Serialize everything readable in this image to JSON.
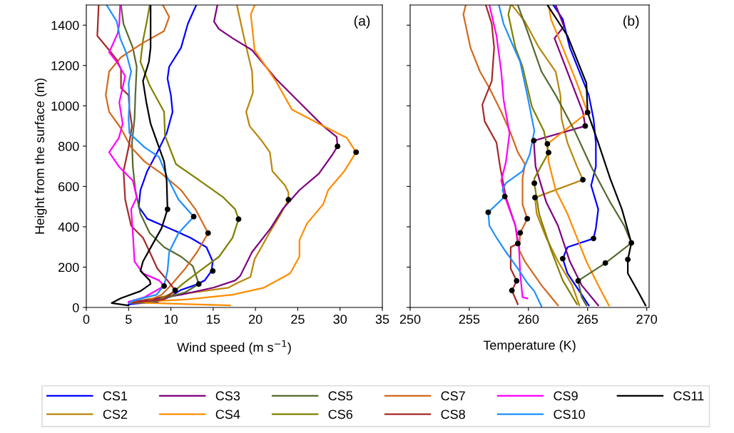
{
  "chart_data": [
    {
      "type": "line",
      "xlabel": "Wind speed (m s$^{−1}$)",
      "ylabel": "Height from the surface (m)",
      "annotations": [
        "(a)"
      ],
      "xlim": [
        0,
        35
      ],
      "xticks": [
        0,
        5,
        10,
        15,
        20,
        25,
        30,
        35
      ],
      "ylim": [
        0,
        1500
      ],
      "yticks": [
        0,
        200,
        400,
        600,
        800,
        1000,
        1200,
        1400
      ],
      "legend": "bottom",
      "grid": false,
      "series": [
        {
          "name": "CS1",
          "color": "#0000ff",
          "x": [
            13.0,
            12.0,
            11.2,
            9.8,
            9.6,
            10.0,
            10.2,
            9.5,
            8.4,
            7.2,
            6.4,
            6.2,
            7.2,
            9.8,
            12.3,
            14.2,
            14.95,
            14.8,
            14.0,
            12.8,
            11.2,
            9.8,
            8.4,
            6.0,
            5.0
          ],
          "values": [
            1500,
            1406,
            1288,
            1194,
            1135,
            1053,
            970,
            864,
            770,
            676,
            582,
            499,
            440,
            393,
            346,
            299,
            228,
            181,
            134,
            110,
            87,
            51,
            28,
            20,
            15
          ]
        },
        {
          "name": "CS2",
          "color": "#b8860b",
          "x": [
            17.8,
            18.6,
            19.6,
            19.7,
            18.9,
            19.3,
            20.7,
            21.7,
            22.0,
            23.5,
            23.9,
            23.9,
            23.0,
            21.8,
            20.7,
            19.9,
            19.4,
            17.9,
            16.8,
            10.0,
            5.0
          ],
          "values": [
            1500,
            1347,
            1170,
            1065,
            970,
            900,
            829,
            770,
            676,
            605,
            570,
            534,
            464,
            381,
            299,
            240,
            151,
            122,
            98,
            60,
            25
          ]
        },
        {
          "name": "CS3",
          "color": "#800080",
          "x": [
            15.5,
            15.1,
            15.65,
            17.3,
            19.6,
            22.4,
            25.2,
            28.0,
            29.6,
            29.7,
            29.1,
            27.5,
            25.2,
            23.2,
            21.8,
            19.6,
            18.2,
            17.6,
            15.1,
            11.2,
            6.9,
            5.0
          ],
          "values": [
            1500,
            1418,
            1382,
            1335,
            1276,
            1135,
            1017,
            900,
            846,
            799,
            758,
            664,
            582,
            487,
            393,
            275,
            157,
            134,
            99,
            63,
            34,
            25
          ]
        },
        {
          "name": "CS4",
          "color": "#ff8c00",
          "x": [
            19.9,
            19.45,
            19.9,
            22.4,
            24.3,
            28.0,
            30.8,
            31.9,
            30.5,
            28.6,
            28.0,
            26.1,
            25.2,
            25.2,
            24.1,
            21.0,
            17.3,
            12.0,
            5.0,
            17.0
          ],
          "values": [
            1500,
            1453,
            1276,
            1123,
            982,
            900,
            841,
            770,
            676,
            582,
            511,
            417,
            334,
            252,
            169,
            98,
            63,
            40,
            25,
            10
          ]
        },
        {
          "name": "CS5",
          "color": "#556b2f",
          "x": [
            4.1,
            4.4,
            5.5,
            5.96,
            5.8,
            5.7,
            5.4,
            5.5,
            5.8,
            6.4,
            7.5,
            9.2,
            11.2,
            12.6,
            13.3,
            11.7,
            8.3,
            5.5
          ],
          "values": [
            1500,
            1406,
            1288,
            1194,
            1053,
            935,
            817,
            699,
            582,
            464,
            369,
            299,
            252,
            205,
            116,
            75,
            34,
            22
          ]
        },
        {
          "name": "CS6",
          "color": "#808000",
          "x": [
            7.5,
            7.1,
            6.7,
            6.4,
            7.5,
            9.2,
            9.3,
            10.6,
            13.4,
            16.2,
            17.6,
            18.0,
            17.3,
            15.7,
            13.4,
            11.2,
            10.3,
            8.3,
            5.5
          ],
          "values": [
            1500,
            1406,
            1324,
            1218,
            1100,
            970,
            852,
            711,
            629,
            546,
            487,
            438,
            346,
            252,
            181,
            110,
            75,
            34,
            22
          ]
        },
        {
          "name": "CS7",
          "color": "#d2691e",
          "x": [
            9.05,
            9.8,
            9.2,
            6.7,
            4.1,
            2.7,
            2.3,
            2.7,
            4.1,
            5.3,
            6.9,
            8.9,
            11.2,
            12.9,
            14.4,
            13.1,
            11.7,
            10.0,
            8.9,
            7.0
          ],
          "values": [
            1500,
            1441,
            1371,
            1312,
            1241,
            1170,
            1053,
            970,
            888,
            794,
            723,
            664,
            582,
            487,
            369,
            275,
            193,
            110,
            63,
            28
          ]
        },
        {
          "name": "CS8",
          "color": "#a52a2a",
          "x": [
            1.46,
            1.3,
            2.7,
            3.6,
            4.1,
            4.1,
            5.0,
            5.1,
            5.4,
            5.0,
            4.4,
            4.6,
            5.3,
            6.7,
            7.5,
            8.4,
            9.6,
            10.5,
            9.2,
            5.5
          ],
          "values": [
            1500,
            1347,
            1276,
            1229,
            1182,
            1088,
            1053,
            982,
            900,
            794,
            676,
            534,
            405,
            346,
            275,
            193,
            134,
            85,
            40,
            25
          ]
        },
        {
          "name": "CS9",
          "color": "#ff00ff",
          "x": [
            4.0,
            3.9,
            3.7,
            2.7,
            3.6,
            4.6,
            3.9,
            4.3,
            3.85,
            2.7,
            3.85,
            5.5,
            5.96,
            5.3,
            5.5,
            5.7,
            6.7,
            8.6,
            9.2,
            6.9,
            5.0
          ],
          "values": [
            1500,
            1406,
            1359,
            1265,
            1218,
            1147,
            1017,
            911,
            841,
            770,
            699,
            629,
            546,
            487,
            369,
            228,
            169,
            134,
            106,
            51,
            28
          ]
        },
        {
          "name": "CS10",
          "color": "#1e90ff",
          "x": [
            2.4,
            3.6,
            4.0,
            4.7,
            5.3,
            5.0,
            5.1,
            5.0,
            5.1,
            6.9,
            8.6,
            9.5,
            10.9,
            12.7,
            10.9,
            9.8,
            9.6,
            9.2,
            8.3,
            5.5,
            5.1
          ],
          "values": [
            1500,
            1418,
            1335,
            1265,
            1170,
            1112,
            1029,
            935,
            864,
            794,
            746,
            652,
            535,
            450,
            369,
            275,
            181,
            110,
            63,
            34,
            22
          ]
        },
        {
          "name": "CS11",
          "color": "#000000",
          "x": [
            7.6,
            7.6,
            7.4,
            6.7,
            7.1,
            7.6,
            8.4,
            9.2,
            9.5,
            9.6,
            8.9,
            7.8,
            6.7,
            6.4,
            7.5,
            7.6,
            6.4,
            4.1,
            3.0,
            5.0
          ],
          "values": [
            1500,
            1288,
            1218,
            1123,
            1017,
            911,
            817,
            723,
            629,
            487,
            393,
            311,
            228,
            181,
            134,
            116,
            81,
            46,
            22,
            10
          ]
        },
        {
          "type": "scatter",
          "color": "#000000",
          "x": [
            14.95,
            23.9,
            29.7,
            31.9,
            13.3,
            18.0,
            14.4,
            10.5,
            9.2,
            12.7,
            9.6
          ],
          "values": [
            181,
            534,
            799,
            770,
            116,
            438,
            369,
            85,
            106,
            450,
            487
          ]
        }
      ]
    },
    {
      "type": "line",
      "xlabel": "Temperature (K)",
      "annotations": [
        "(b)"
      ],
      "xlim": [
        250,
        270.2
      ],
      "xticks": [
        250,
        255,
        260,
        265,
        270
      ],
      "ylim": [
        0,
        1500
      ],
      "yticks": [
        0,
        200,
        400,
        600,
        800,
        1000,
        1200,
        1400
      ],
      "tick_labels": "x",
      "grid": false,
      "series": [
        {
          "color": "#0000ff",
          "x": [
            262.1,
            262.9,
            263.5,
            265.1,
            265.5,
            265.7,
            265.7,
            265.3,
            265.9,
            265.7,
            265.5,
            263.3,
            262.9,
            263.3,
            264.5,
            265.1
          ],
          "values": [
            1500,
            1430,
            1288,
            1053,
            935,
            817,
            699,
            605,
            487,
            393,
            342,
            299,
            242,
            169,
            63,
            10
          ]
        },
        {
          "color": "#b8860b",
          "x": [
            258.6,
            259.7,
            260.9,
            262.3,
            262.7,
            262.8,
            263.3,
            264.1,
            264.6,
            260.55,
            260.7,
            261.5,
            262.5,
            263.7,
            264.3
          ],
          "values": [
            1500,
            1418,
            1288,
            1170,
            1053,
            935,
            817,
            699,
            633,
            545,
            464,
            346,
            228,
            110,
            10
          ]
        },
        {
          "color": "#800080",
          "x": [
            262.3,
            263.0,
            262.2,
            262.9,
            263.9,
            264.6,
            264.8,
            260.45,
            260.6,
            261.5,
            262.5,
            263.5,
            264.5,
            265.9
          ],
          "values": [
            1500,
            1394,
            1335,
            1229,
            1076,
            970,
            900,
            827,
            699,
            523,
            405,
            228,
            110,
            10
          ]
        },
        {
          "color": "#ff8c00",
          "x": [
            261.7,
            261.9,
            262.9,
            264.1,
            265.0,
            261.6,
            261.7,
            262.3,
            263.3,
            264.1,
            264.9,
            265.9,
            266.8
          ],
          "values": [
            1500,
            1430,
            1288,
            1112,
            967,
            811,
            723,
            582,
            464,
            346,
            228,
            110,
            10
          ]
        },
        {
          "color": "#556b2f",
          "x": [
            259.1,
            259.9,
            261.1,
            262.3,
            263.9,
            265.3,
            266.9,
            268.1,
            268.7,
            266.5,
            264.2,
            264.5,
            264.9
          ],
          "values": [
            1500,
            1371,
            1170,
            1053,
            876,
            699,
            523,
            405,
            320,
            220,
            132,
            51,
            10
          ]
        },
        {
          "color": "#808000",
          "x": [
            258.5,
            258.3,
            258.9,
            259.5,
            260.3,
            261.3,
            261.7,
            260.5,
            260.5,
            260.9,
            261.9,
            262.9,
            264.1
          ],
          "values": [
            1500,
            1453,
            1288,
            1194,
            994,
            876,
            768,
            640,
            616,
            464,
            287,
            134,
            16
          ]
        },
        {
          "color": "#d2691e",
          "x": [
            254.7,
            254.5,
            255.1,
            255.9,
            256.7,
            257.7,
            258.5,
            259.1,
            259.7,
            259.5,
            259.5,
            259.9,
            259.3,
            259.2,
            259.7,
            261.1,
            262.5
          ],
          "values": [
            1500,
            1453,
            1288,
            1170,
            1088,
            970,
            864,
            770,
            711,
            640,
            511,
            440,
            370,
            287,
            228,
            110,
            10
          ]
        },
        {
          "color": "#a52a2a",
          "x": [
            256.4,
            256.9,
            257.1,
            256.9,
            256.1,
            256.3,
            257.3,
            257.6,
            258.1,
            258.9,
            259.1,
            258.5,
            258.5,
            259.0,
            258.6,
            259.1
          ],
          "values": [
            1500,
            1406,
            1288,
            1123,
            1006,
            923,
            817,
            699,
            546,
            405,
            317,
            299,
            193,
            132,
            84,
            16
          ]
        },
        {
          "color": "#ff00ff",
          "x": [
            256.7,
            257.3,
            257.7,
            257.9,
            258.4,
            258.1,
            257.7,
            258.1,
            258.9,
            259.2,
            259.3,
            259.5,
            259.9
          ],
          "values": [
            1500,
            1347,
            1170,
            1029,
            864,
            723,
            629,
            534,
            405,
            299,
            169,
            51,
            45
          ]
        },
        {
          "color": "#1e90ff",
          "x": [
            257.5,
            257.9,
            258.5,
            259.3,
            259.9,
            260.5,
            260.1,
            259.5,
            258.1,
            257.8,
            258.0,
            256.6,
            256.7,
            257.3,
            258.1,
            259.1,
            259.9,
            260.5,
            261.1
          ],
          "values": [
            1500,
            1406,
            1324,
            1218,
            1053,
            876,
            758,
            676,
            617,
            582,
            550,
            472,
            405,
            346,
            275,
            193,
            122,
            80,
            5
          ]
        },
        {
          "color": "#000000",
          "x": [
            261.6,
            263.3,
            264.9,
            265.0,
            265.9,
            266.9,
            267.9,
            268.7,
            268.4,
            268.4,
            269.3,
            269.9
          ],
          "values": [
            1500,
            1347,
            1112,
            967,
            817,
            641,
            487,
            320,
            238,
            169,
            75,
            10
          ]
        },
        {
          "type": "scatter",
          "color": "#000000",
          "x": [
            258.0,
            256.6,
            259.9,
            259.3,
            259.1,
            259.0,
            258.6,
            265.0,
            264.8,
            260.45,
            261.6,
            261.7,
            264.6,
            260.5,
            260.55,
            265.5,
            268.7,
            262.9,
            266.5,
            268.4,
            264.2
          ],
          "values": [
            550,
            472,
            440,
            370,
            317,
            132,
            84,
            967,
            900,
            827,
            811,
            768,
            633,
            616,
            545,
            342,
            320,
            242,
            220,
            238,
            132
          ]
        }
      ]
    }
  ]
}
